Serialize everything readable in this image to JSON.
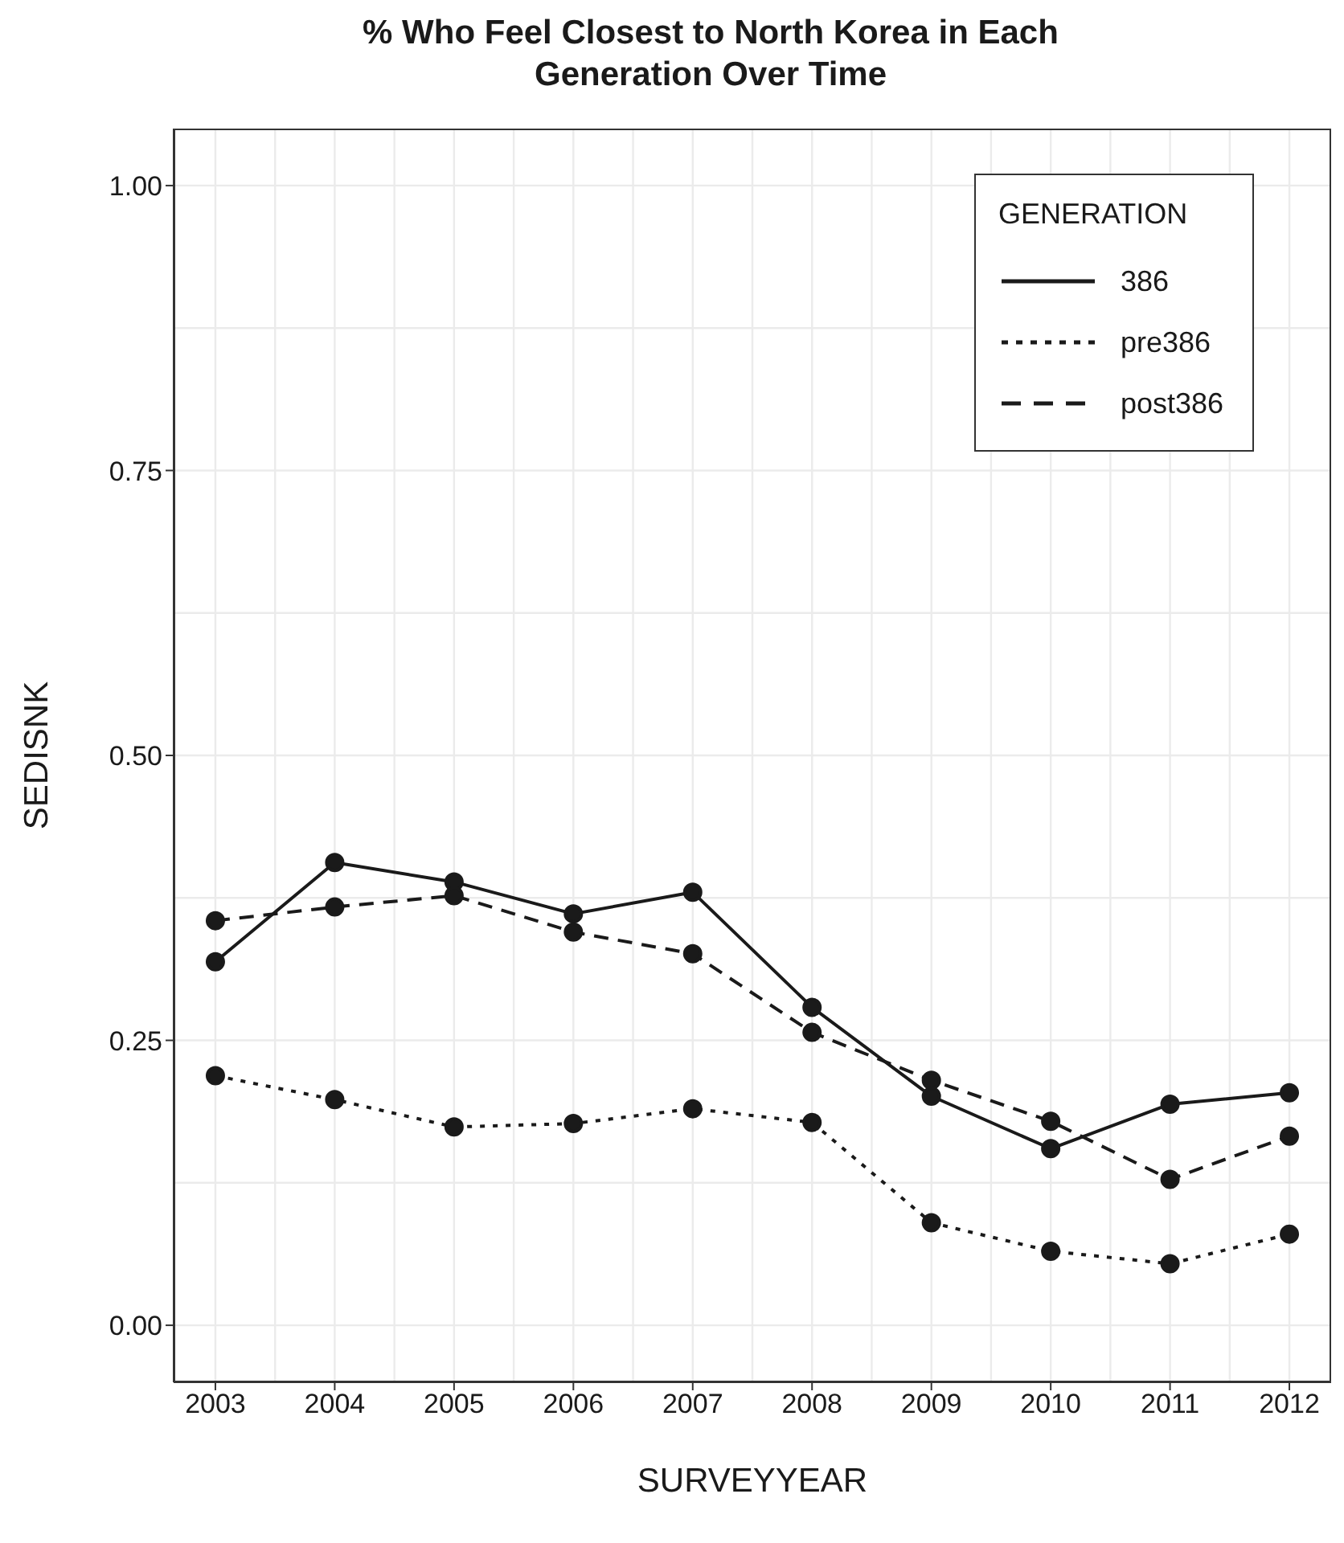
{
  "chart_data": {
    "type": "line",
    "title": "% Who Feel Closest to North Korea in Each Generation Over Time",
    "xlabel": "SURVEYYEAR",
    "ylabel": "SEDISNK",
    "legend_title": "GENERATION",
    "x": [
      2003,
      2004,
      2005,
      2006,
      2007,
      2008,
      2009,
      2010,
      2011,
      2012
    ],
    "series": [
      {
        "name": "386",
        "color": "#1a1a1a",
        "line_style": "solid",
        "values": [
          0.319,
          0.406,
          0.389,
          0.361,
          0.38,
          0.279,
          0.201,
          0.155,
          0.194,
          0.204
        ]
      },
      {
        "name": "pre386",
        "color": "#1a1a1a",
        "line_style": "dotted",
        "values": [
          0.219,
          0.198,
          0.174,
          0.177,
          0.19,
          0.178,
          0.09,
          0.065,
          0.054,
          0.08
        ]
      },
      {
        "name": "post386",
        "color": "#1a1a1a",
        "line_style": "dashed",
        "values": [
          0.355,
          0.367,
          0.377,
          0.345,
          0.326,
          0.257,
          0.215,
          0.179,
          0.128,
          0.166
        ]
      }
    ],
    "xlim": [
      2002.65,
      2012.35
    ],
    "xticks": [
      2003,
      2004,
      2005,
      2006,
      2007,
      2008,
      2009,
      2010,
      2011,
      2012
    ],
    "ylim": [
      -0.05,
      1.05
    ],
    "yticks": [
      {
        "value": 0,
        "label": "0.00"
      },
      {
        "value": 0.25,
        "label": "0.25"
      },
      {
        "value": 0.5,
        "label": "0.50"
      },
      {
        "value": 0.75,
        "label": "0.75"
      },
      {
        "value": 1,
        "label": "1.00"
      }
    ],
    "grid": true,
    "legend": "top right",
    "marker": "circle"
  }
}
